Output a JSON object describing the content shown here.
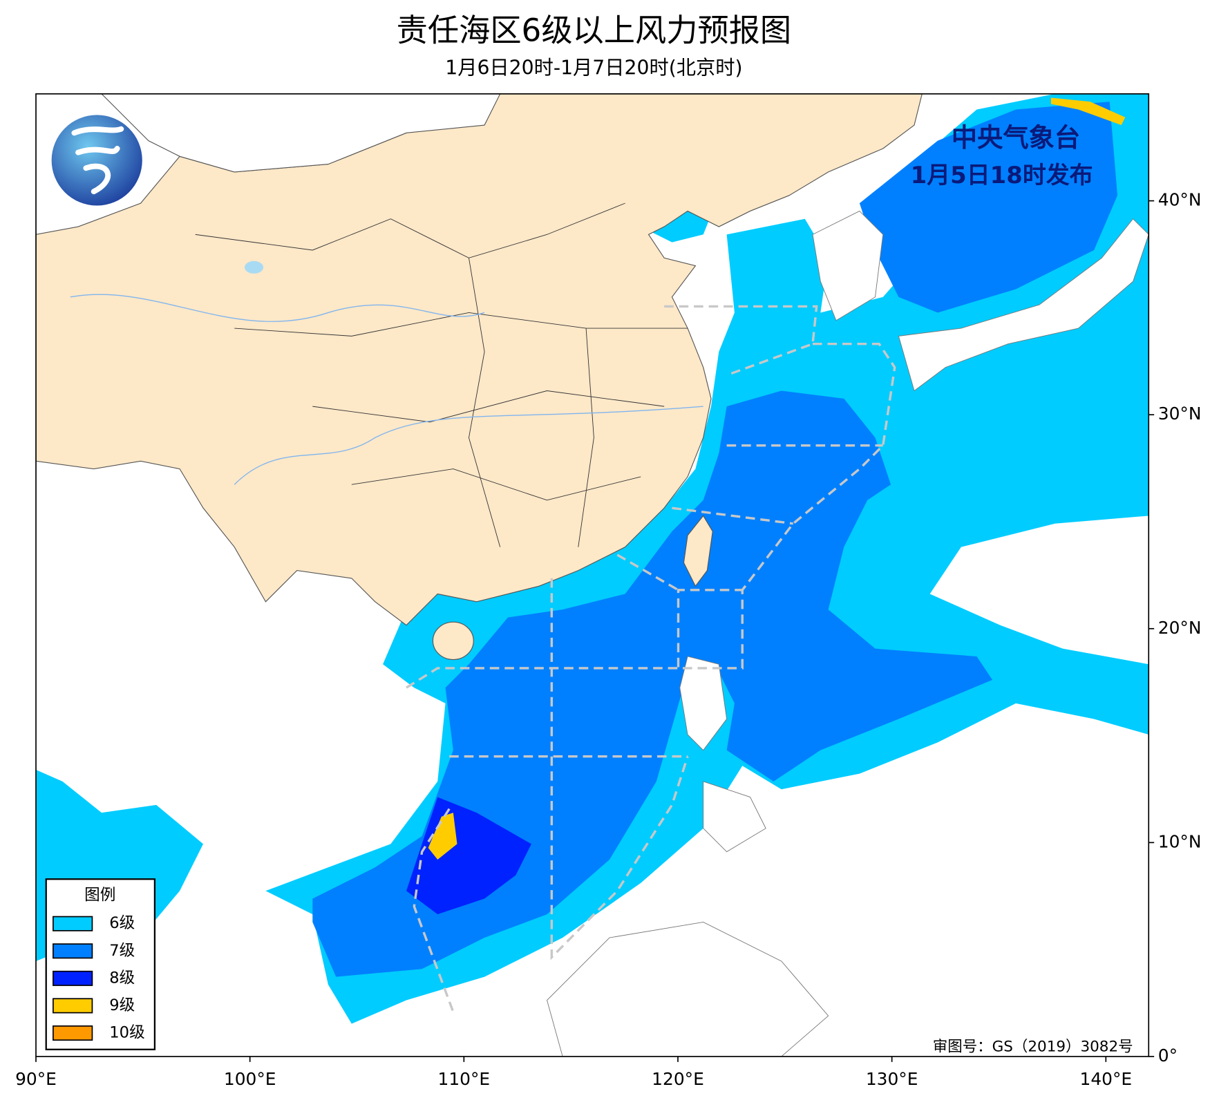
{
  "header": {
    "title": "责任海区6级以上风力预报图",
    "subtitle": "1月6日20时-1月7日20时(北京时)"
  },
  "issuer": {
    "name": "中央气象台",
    "issued": "1月5日18时发布"
  },
  "map": {
    "xlim": [
      90,
      142
    ],
    "ylim": [
      0,
      45
    ],
    "xticks": [
      {
        "value": 90,
        "label": "90°E"
      },
      {
        "value": 100,
        "label": "100°E"
      },
      {
        "value": 110,
        "label": "110°E"
      },
      {
        "value": 120,
        "label": "120°E"
      },
      {
        "value": 130,
        "label": "130°E"
      },
      {
        "value": 140,
        "label": "140°E"
      }
    ],
    "yticks": [
      {
        "value": 0,
        "label": "0°"
      },
      {
        "value": 10,
        "label": "10°N"
      },
      {
        "value": 20,
        "label": "20°N"
      },
      {
        "value": 30,
        "label": "30°N"
      },
      {
        "value": 40,
        "label": "40°N"
      }
    ]
  },
  "legend": {
    "title": "图例",
    "items": [
      {
        "label": "6级",
        "color": "#00ccff"
      },
      {
        "label": "7级",
        "color": "#0080ff"
      },
      {
        "label": "8级",
        "color": "#0022ff"
      },
      {
        "label": "9级",
        "color": "#ffcc00"
      },
      {
        "label": "10级",
        "color": "#ff9900"
      }
    ]
  },
  "footer": {
    "review_number": "审图号：GS（2019）3082号"
  }
}
